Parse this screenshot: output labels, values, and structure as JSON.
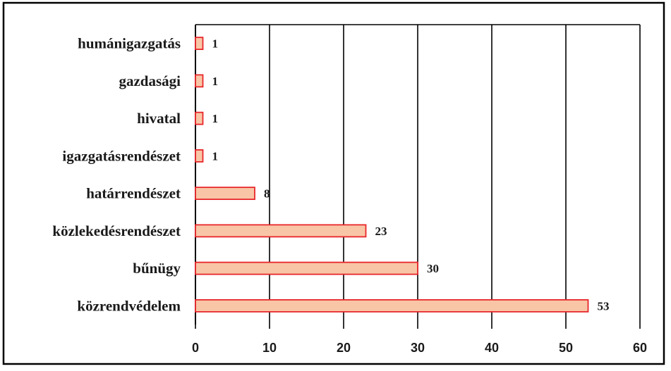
{
  "chart_data": {
    "type": "bar",
    "orientation": "horizontal",
    "title": "",
    "xlabel": "",
    "ylabel": "",
    "categories": [
      "humánigazgatás",
      "gazdasági",
      "hivatal",
      "igazgatásrendészet",
      "határrendészet",
      "közlekedésrendészet",
      "bűnügy",
      "közrendvédelem"
    ],
    "values": [
      1,
      1,
      1,
      1,
      8,
      23,
      30,
      53
    ],
    "value_labels": [
      "1",
      "1",
      "1",
      "1",
      "8",
      "23",
      "30",
      "53"
    ],
    "xlim": [
      0,
      60
    ],
    "x_ticks": [
      "0",
      "10",
      "20",
      "30",
      "40",
      "50",
      "60"
    ],
    "grid": "vertical",
    "legend": "none",
    "colors": {
      "bar_fill": "#f8c6a6",
      "bar_stroke": "#e8262a",
      "grid": "#000000",
      "frame": "#000000"
    }
  }
}
